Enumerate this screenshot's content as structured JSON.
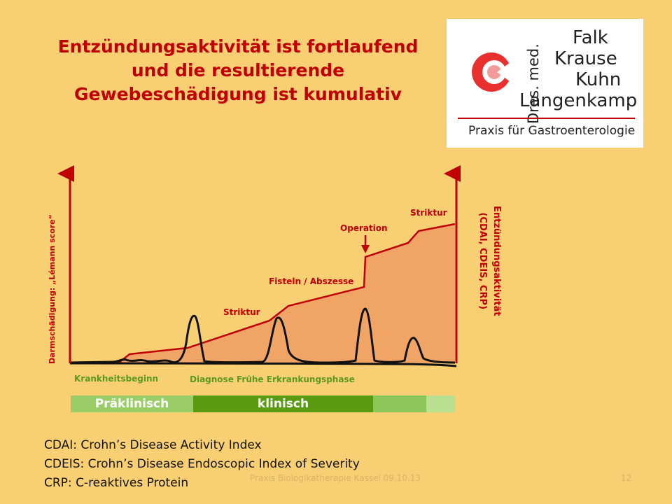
{
  "title": {
    "line1": "Entzündungsaktivität ist fortlaufend",
    "line2": "und die resultierende",
    "line3": "Gewebeschädigung ist kumulativ"
  },
  "logo": {
    "prefix": "Dres. med.",
    "names": [
      "Falk",
      "Krause",
      "Kuhn",
      "Langenkamp"
    ],
    "subtitle": "Praxis für Gastroenterologie"
  },
  "diagram": {
    "y_left_label": "Darmschädigung: „Lémann score“",
    "y_right_label_1": "Entzündungsaktivität",
    "y_right_label_2": "(CDAI, CDEIS, CRP)",
    "events": {
      "striktur_1": "Striktur",
      "fisteln": "Fisteln / Abszesse",
      "operation": "Operation",
      "striktur_2": "Striktur"
    },
    "axis": {
      "krankheitsbeginn": "Krankheitsbeginn",
      "diagnose": "Diagnose",
      "fruehe_phase": "Frühe Erkrankungsphase"
    },
    "phases": {
      "praeklinisch": "Präklinisch",
      "klinisch": "klinisch"
    },
    "colors": {
      "damage_fill": "#f0a566",
      "damage_line": "#c00000",
      "activity_line": "#111111",
      "phase_pre": "#9acd67",
      "phase_clinical": "#5a9a10"
    }
  },
  "definitions": [
    "CDAI: Crohn’s Disease Activity Index",
    "CDEIS: Crohn’s Disease Endoscopic Index of Severity",
    "CRP: C-reaktives Protein"
  ],
  "footer": {
    "center": "Praxis Biologikatherapie Kassel 09.10.13",
    "page": "12"
  }
}
